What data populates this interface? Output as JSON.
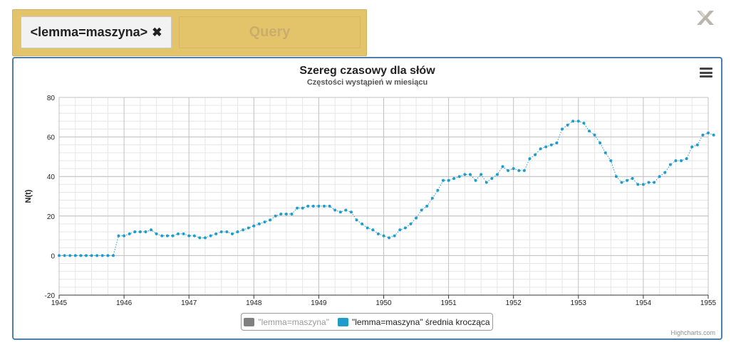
{
  "query_bar": {
    "chip_label": "<lemma=maszyna>",
    "chip_close_glyph": "✖",
    "query_button_label": "Query"
  },
  "close_icon": "close-x-icon",
  "chart": {
    "title": "Szereg czasowy dla słów",
    "subtitle": "Częstości wystąpień w miesiącu",
    "ylabel": "N(t)",
    "credits": "Highcharts.com",
    "legend": [
      {
        "label": "\"lemma=maszyna\"",
        "color": "#808080",
        "hidden": true
      },
      {
        "label": "\"lemma=maszyna\" średnia krocząca",
        "color": "#1e9ccc",
        "hidden": false
      }
    ]
  },
  "chart_data": {
    "type": "line",
    "x_ticks": [
      "1945",
      "1946",
      "1947",
      "1948",
      "1949",
      "1950",
      "1951",
      "1952",
      "1953",
      "1954",
      "1955"
    ],
    "y_ticks": [
      -20,
      0,
      20,
      40,
      60,
      80
    ],
    "xlim": [
      1945,
      1955
    ],
    "ylim": [
      -20,
      80
    ],
    "grid": true,
    "legend_position": "bottom",
    "series": [
      {
        "name": "\"lemma=maszyna\" średnia krocząca",
        "color": "#1e9ccc",
        "x_start": 1945.0,
        "x_step_months": 1,
        "values": [
          0,
          0,
          0,
          0,
          0,
          0,
          0,
          0,
          0,
          0,
          0,
          10,
          10,
          11,
          12,
          12,
          12,
          13,
          11,
          10,
          10,
          10,
          11,
          11,
          10,
          10,
          9,
          9,
          10,
          11,
          12,
          12,
          11,
          12,
          13,
          14,
          15,
          16,
          17,
          18,
          20,
          21,
          21,
          21,
          24,
          24,
          25,
          25,
          25,
          25,
          25,
          23,
          22,
          23,
          22,
          18,
          16,
          14,
          13,
          11,
          10,
          9,
          10,
          13,
          14,
          16,
          19,
          23,
          25,
          29,
          33,
          38,
          38,
          39,
          40,
          41,
          41,
          38,
          41,
          37,
          39,
          41,
          45,
          43,
          44,
          43,
          43,
          49,
          51,
          54,
          55,
          56,
          57,
          64,
          66,
          68,
          68,
          67,
          63,
          61,
          57,
          52,
          48,
          40,
          37,
          38,
          39,
          36,
          36,
          37,
          37,
          40,
          42,
          46,
          48,
          48,
          49,
          55,
          56,
          61,
          62,
          61
        ]
      }
    ]
  }
}
